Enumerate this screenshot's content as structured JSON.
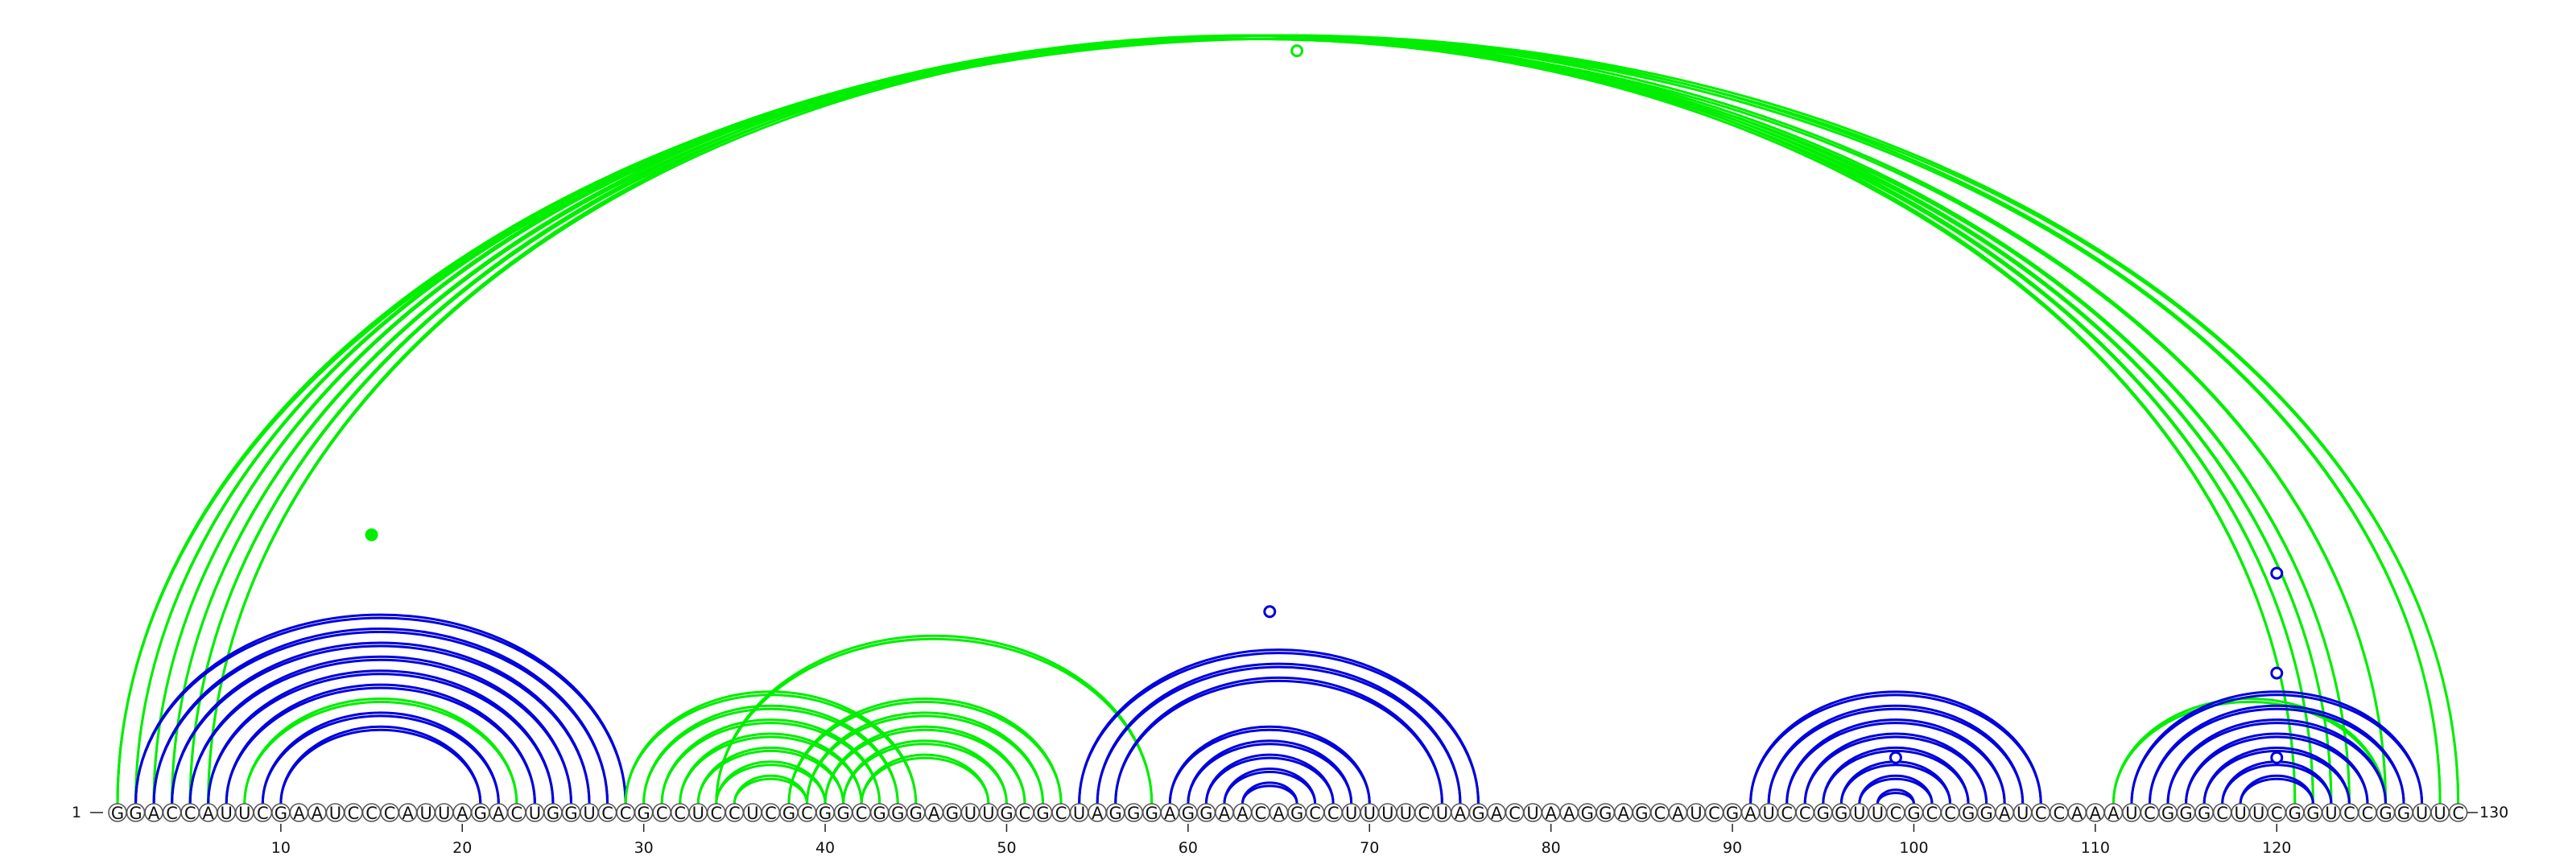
{
  "sequence": "GGACCAUUCGAAUCCCAUUAGACUGGUCCGCCUCCUCGCGGCGGGAGUUGCGCUAGGGAGGAACAGCCUUUUCUAGACUAAGGAGCAUCGAUCCGGUUCGCCGGAUCCAAAUCGGGCUUCGGUCCGGUUC",
  "start_label": "1",
  "end_label": "130",
  "ticks": [
    "10",
    "20",
    "30",
    "40",
    "50",
    "60",
    "70",
    "80",
    "90",
    "100",
    "110",
    "120"
  ],
  "colors": {
    "blue": "#0000dd",
    "green": "#00ee00"
  },
  "chart_data": {
    "type": "arc_diagram",
    "length": 130,
    "arcs": [
      {
        "i": 1,
        "j": 130,
        "color": "green"
      },
      {
        "i": 1,
        "j": 129,
        "color": "green"
      },
      {
        "i": 2,
        "j": 126,
        "color": "green"
      },
      {
        "i": 3,
        "j": 124,
        "color": "green"
      },
      {
        "i": 4,
        "j": 123,
        "color": "green"
      },
      {
        "i": 5,
        "j": 122,
        "color": "green"
      },
      {
        "i": 6,
        "j": 121,
        "color": "green"
      },
      {
        "i": 2,
        "j": 29,
        "color": "blue"
      },
      {
        "i": 3,
        "j": 28,
        "color": "blue"
      },
      {
        "i": 4,
        "j": 27,
        "color": "blue"
      },
      {
        "i": 5,
        "j": 26,
        "color": "blue"
      },
      {
        "i": 6,
        "j": 25,
        "color": "blue"
      },
      {
        "i": 7,
        "j": 24,
        "color": "blue"
      },
      {
        "i": 8,
        "j": 23,
        "color": "green"
      },
      {
        "i": 9,
        "j": 22,
        "color": "blue"
      },
      {
        "i": 10,
        "j": 21,
        "color": "blue"
      },
      {
        "i": 29,
        "j": 45,
        "color": "green"
      },
      {
        "i": 30,
        "j": 44,
        "color": "green"
      },
      {
        "i": 31,
        "j": 43,
        "color": "green"
      },
      {
        "i": 32,
        "j": 42,
        "color": "green"
      },
      {
        "i": 33,
        "j": 41,
        "color": "green"
      },
      {
        "i": 34,
        "j": 40,
        "color": "green"
      },
      {
        "i": 35,
        "j": 39,
        "color": "green"
      },
      {
        "i": 34,
        "j": 58,
        "color": "green"
      },
      {
        "i": 38,
        "j": 53,
        "color": "green"
      },
      {
        "i": 39,
        "j": 52,
        "color": "green"
      },
      {
        "i": 40,
        "j": 51,
        "color": "green"
      },
      {
        "i": 41,
        "j": 50,
        "color": "green"
      },
      {
        "i": 42,
        "j": 49,
        "color": "green"
      },
      {
        "i": 54,
        "j": 76,
        "color": "blue"
      },
      {
        "i": 55,
        "j": 75,
        "color": "blue"
      },
      {
        "i": 56,
        "j": 74,
        "color": "blue"
      },
      {
        "i": 59,
        "j": 70,
        "color": "blue"
      },
      {
        "i": 60,
        "j": 69,
        "color": "blue"
      },
      {
        "i": 61,
        "j": 68,
        "color": "blue"
      },
      {
        "i": 62,
        "j": 67,
        "color": "blue"
      },
      {
        "i": 63,
        "j": 66,
        "color": "blue"
      },
      {
        "i": 91,
        "j": 107,
        "color": "blue"
      },
      {
        "i": 92,
        "j": 106,
        "color": "blue"
      },
      {
        "i": 93,
        "j": 105,
        "color": "blue"
      },
      {
        "i": 94,
        "j": 104,
        "color": "blue"
      },
      {
        "i": 95,
        "j": 103,
        "color": "blue"
      },
      {
        "i": 96,
        "j": 102,
        "color": "blue"
      },
      {
        "i": 97,
        "j": 101,
        "color": "blue"
      },
      {
        "i": 98,
        "j": 100,
        "color": "blue"
      },
      {
        "i": 111,
        "j": 126,
        "color": "green"
      },
      {
        "i": 112,
        "j": 128,
        "color": "blue"
      },
      {
        "i": 113,
        "j": 127,
        "color": "blue"
      },
      {
        "i": 114,
        "j": 126,
        "color": "blue"
      },
      {
        "i": 115,
        "j": 125,
        "color": "blue"
      },
      {
        "i": 116,
        "j": 124,
        "color": "blue"
      },
      {
        "i": 117,
        "j": 123,
        "color": "blue"
      },
      {
        "i": 118,
        "j": 122,
        "color": "blue"
      }
    ],
    "markers": [
      {
        "position": 66,
        "height": 0.98,
        "color": "green",
        "filled": false
      },
      {
        "position": 15,
        "height": 0.35,
        "color": "green",
        "filled": true
      },
      {
        "position": 64.5,
        "height": 0.25,
        "color": "blue",
        "filled": false
      },
      {
        "position": 99,
        "height": 0.06,
        "color": "blue",
        "filled": false
      },
      {
        "position": 120,
        "height": 0.3,
        "color": "blue",
        "filled": false
      },
      {
        "position": 120,
        "height": 0.17,
        "color": "blue",
        "filled": false
      },
      {
        "position": 120,
        "height": 0.06,
        "color": "blue",
        "filled": false
      }
    ]
  }
}
